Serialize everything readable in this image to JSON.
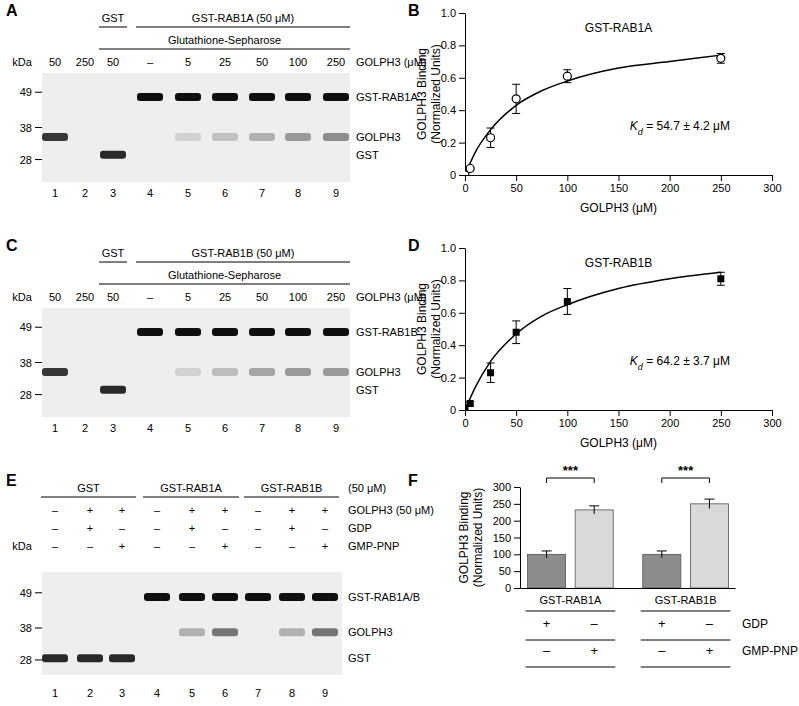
{
  "chart_data": [
    {
      "panel": "B",
      "type": "scatter",
      "title": "GST-RAB1A",
      "x_label": "GOLPH3 (μM)",
      "y_label": [
        "GOLPH3 Binding",
        "(Normalized Units)"
      ],
      "x": [
        0,
        5,
        25,
        50,
        100,
        250
      ],
      "values": [
        0,
        0.04,
        0.23,
        0.47,
        0.61,
        0.72
      ],
      "errors": [
        0,
        0.01,
        0.06,
        0.09,
        0.04,
        0.03
      ],
      "marker": "circle-open",
      "color": "#000000",
      "fit": {
        "x": [
          0,
          10,
          25,
          50,
          75,
          100,
          150,
          200,
          250
        ],
        "values": [
          0,
          0.14,
          0.28,
          0.43,
          0.52,
          0.58,
          0.66,
          0.7,
          0.74
        ],
        "line_style": "solid"
      },
      "annotation": {
        "symbol": "K",
        "subscript": "d",
        "text": " = 54.7 ± 4.2 μM"
      },
      "xlim": [
        0,
        300
      ],
      "xticks": [
        0,
        50,
        100,
        150,
        200,
        250,
        300
      ],
      "ylim": [
        0,
        1
      ],
      "yticks": [
        0,
        0.2,
        0.4,
        0.6,
        0.8,
        {
          "value": 1,
          "label": "1.0"
        }
      ]
    },
    {
      "panel": "D",
      "type": "scatter",
      "title": "GST-RAB1B",
      "x_label": "GOLPH3 (μM)",
      "y_label": [
        "GOLPH3 Binding",
        "(Normalized Units)"
      ],
      "x": [
        0,
        5,
        25,
        50,
        100,
        250
      ],
      "values": [
        0,
        0.04,
        0.23,
        0.48,
        0.67,
        0.81
      ],
      "errors": [
        0,
        0.01,
        0.06,
        0.07,
        0.08,
        0.04
      ],
      "marker": "square",
      "color": "#000000",
      "fit": {
        "x": [
          0,
          10,
          25,
          50,
          75,
          100,
          150,
          200,
          250
        ],
        "values": [
          0,
          0.14,
          0.3,
          0.47,
          0.58,
          0.65,
          0.75,
          0.81,
          0.85
        ],
        "line_style": "solid"
      },
      "annotation": {
        "symbol": "K",
        "subscript": "d",
        "text": " = 64.2 ± 3.7 μM"
      },
      "xlim": [
        0,
        300
      ],
      "xticks": [
        0,
        50,
        100,
        150,
        200,
        250,
        300
      ],
      "ylim": [
        0,
        1
      ],
      "yticks": [
        0,
        0.2,
        0.4,
        0.6,
        0.8,
        {
          "value": 1,
          "label": "1.0"
        }
      ]
    },
    {
      "panel": "F",
      "type": "bar",
      "y_label": [
        "GOLPH3 Binding",
        "(Normalized Units)"
      ],
      "categories": [
        null,
        null,
        null,
        null
      ],
      "values": [
        100,
        232,
        100,
        250
      ],
      "errors": [
        10,
        12,
        10,
        14
      ],
      "colors": [
        "#8c8c8c",
        "#d9d9d9",
        "#8c8c8c",
        "#d9d9d9"
      ],
      "ylim": [
        0,
        300
      ],
      "yticks": [
        0,
        50,
        100,
        150,
        200,
        250,
        300
      ],
      "groups": [
        {
          "label": "GST-RAB1A",
          "members": [
            0,
            1
          ]
        },
        {
          "label": "GST-RAB1B",
          "members": [
            2,
            3
          ]
        }
      ],
      "conditions": [
        {
          "label": "GDP",
          "marks": [
            "+",
            "–",
            "+",
            "–"
          ]
        },
        {
          "label": "GMP-PNP",
          "marks": [
            "–",
            "+",
            "–",
            "+"
          ]
        }
      ],
      "significance": [
        {
          "label": "***",
          "between": [
            0,
            1
          ]
        },
        {
          "label": "***",
          "between": [
            2,
            3
          ]
        }
      ]
    }
  ],
  "gels": [
    {
      "panel": "A",
      "headers": [
        {
          "text": "GST",
          "from": 3,
          "to": 3,
          "row": 0
        },
        {
          "text": "GST-RAB1A (50 μM)",
          "from": 4,
          "to": 9,
          "row": 0
        },
        {
          "text": "Glutathione-Sepharose",
          "from": 3,
          "to": 9,
          "row": 1
        }
      ],
      "rows": [
        {
          "label": "GOLPH3 (μM)",
          "cells": [
            "50",
            "250",
            "50",
            "–",
            "5",
            "25",
            "50",
            "100",
            "250"
          ]
        }
      ],
      "unit_label": "kDa",
      "kda_range": [
        55,
        21
      ],
      "markers": [
        49,
        38,
        28
      ],
      "bands": [
        {
          "label": "GST-RAB1A",
          "kda": 47.5,
          "intensity": [
            0,
            0,
            0,
            1,
            1,
            1,
            1,
            1,
            1
          ]
        },
        {
          "label": "GOLPH3",
          "kda": 35,
          "intensity": [
            0.85,
            0,
            0,
            0,
            0.2,
            0.28,
            0.35,
            0.45,
            0.5
          ]
        },
        {
          "label": "GST",
          "kda": 29.5,
          "intensity": [
            0,
            0,
            0.9,
            0,
            0,
            0,
            0,
            0,
            0
          ]
        }
      ],
      "lane_numbers": [
        1,
        2,
        3,
        4,
        5,
        6,
        7,
        8,
        9
      ]
    },
    {
      "panel": "C",
      "headers": [
        {
          "text": "GST",
          "from": 3,
          "to": 3,
          "row": 0
        },
        {
          "text": "GST-RAB1B (50 μM)",
          "from": 4,
          "to": 9,
          "row": 0
        },
        {
          "text": "Glutathione-Sepharose",
          "from": 3,
          "to": 9,
          "row": 1
        }
      ],
      "rows": [
        {
          "label": "GOLPH3 (μM)",
          "cells": [
            "50",
            "250",
            "50",
            "–",
            "5",
            "25",
            "50",
            "100",
            "250"
          ]
        }
      ],
      "unit_label": "kDa",
      "kda_range": [
        55,
        21
      ],
      "markers": [
        49,
        38,
        28
      ],
      "bands": [
        {
          "label": "GST-RAB1B",
          "kda": 47.5,
          "intensity": [
            0,
            0,
            0,
            1,
            1,
            1,
            1,
            1,
            1
          ]
        },
        {
          "label": "GOLPH3",
          "kda": 35,
          "intensity": [
            0.85,
            0,
            0,
            0,
            0.2,
            0.3,
            0.4,
            0.45,
            0.45
          ]
        },
        {
          "label": "GST",
          "kda": 29.5,
          "intensity": [
            0,
            0,
            0.9,
            0,
            0,
            0,
            0,
            0,
            0
          ]
        }
      ],
      "lane_numbers": [
        1,
        2,
        3,
        4,
        5,
        6,
        7,
        8,
        9
      ]
    },
    {
      "panel": "E",
      "headers": [
        {
          "text": "GST",
          "from": 1,
          "to": 3,
          "row": 0
        },
        {
          "text": "GST-RAB1A",
          "from": 4,
          "to": 6,
          "row": 0
        },
        {
          "text": "GST-RAB1B",
          "from": 7,
          "to": 9,
          "row": 0
        }
      ],
      "header_note": "(50 μM)",
      "rows": [
        {
          "label": "GOLPH3 (50 μM)",
          "cells": [
            "–",
            "+",
            "+",
            "–",
            "+",
            "+",
            "–",
            "+",
            "+"
          ]
        },
        {
          "label": "GDP",
          "cells": [
            "–",
            "+",
            "–",
            "–",
            "+",
            "–",
            "–",
            "+",
            "–"
          ]
        },
        {
          "label": "GMP-PNP",
          "cells": [
            "–",
            "–",
            "+",
            "–",
            "–",
            "+",
            "–",
            "–",
            "+"
          ]
        }
      ],
      "unit_label": "kDa",
      "kda_range": [
        55.5,
        23.3
      ],
      "markers": [
        49,
        38,
        28
      ],
      "bands": [
        {
          "label": "GST-RAB1A/B",
          "kda": 47.7,
          "intensity": [
            0,
            0,
            0,
            1,
            1,
            1,
            1,
            1,
            1
          ]
        },
        {
          "label": "GOLPH3",
          "kda": 36.7,
          "intensity": [
            0,
            0,
            0,
            0,
            0.35,
            0.6,
            0,
            0.35,
            0.6
          ]
        },
        {
          "label": "GST",
          "kda": 28.5,
          "intensity": [
            0.9,
            0.9,
            0.9,
            0,
            0,
            0,
            0,
            0,
            0
          ]
        }
      ],
      "lane_numbers": [
        1,
        2,
        3,
        4,
        5,
        6,
        7,
        8,
        9
      ]
    }
  ]
}
